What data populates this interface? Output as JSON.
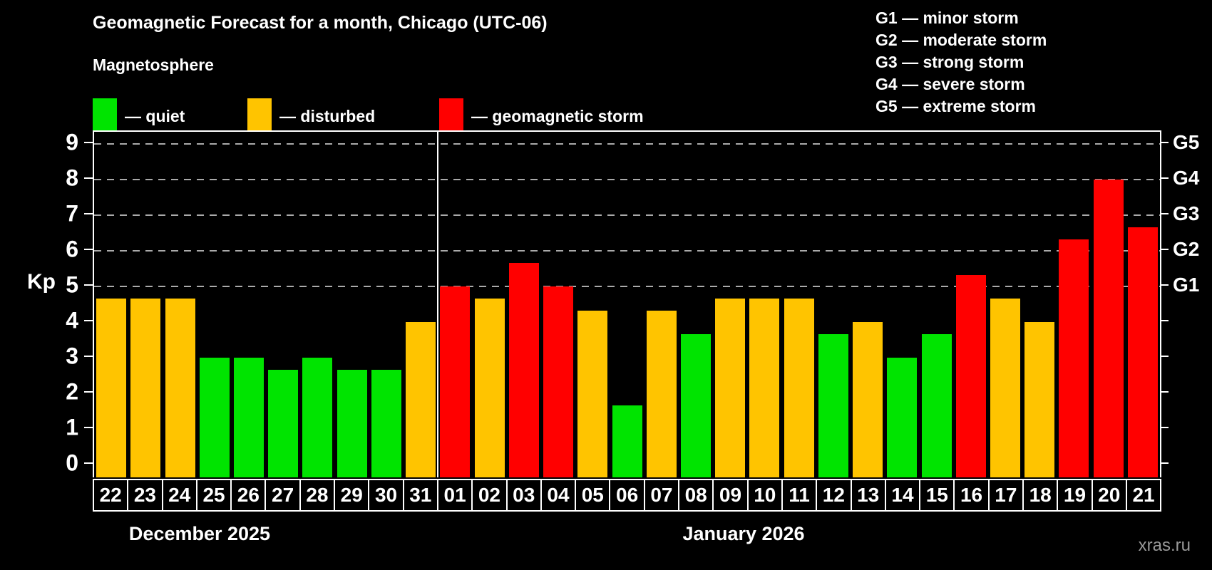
{
  "title": "Geomagnetic Forecast for a month, Chicago (UTC-06)",
  "subtitle": "Magnetosphere",
  "legend": {
    "items": [
      {
        "label": "— quiet",
        "level": "quiet",
        "color": "#00e400"
      },
      {
        "label": "— disturbed",
        "level": "disturbed",
        "color": "#ffc400"
      },
      {
        "label": "— geomagnetic storm",
        "level": "storm",
        "color": "#ff0000"
      }
    ]
  },
  "g_scale_legend": [
    "G1 — minor storm",
    "G2 — moderate storm",
    "G3 — strong storm",
    "G4 — severe storm",
    "G5 — extreme storm"
  ],
  "watermark": "xras.ru",
  "chart_data": {
    "type": "bar",
    "title": "Geomagnetic Forecast for a month, Chicago (UTC-06)",
    "ylabel": "Kp",
    "ylim": [
      0,
      9.34
    ],
    "yticks": [
      0,
      1,
      2,
      3,
      4,
      5,
      6,
      7,
      8,
      9
    ],
    "gridlines_at": [
      5,
      6,
      7,
      8,
      9
    ],
    "grid": "dashed horizontal at storm levels only",
    "legend_position": "top-left",
    "right_axis_labels": [
      {
        "label": "G1",
        "value": 5
      },
      {
        "label": "G2",
        "value": 6
      },
      {
        "label": "G3",
        "value": 7
      },
      {
        "label": "G4",
        "value": 8
      },
      {
        "label": "G5",
        "value": 9
      }
    ],
    "months": [
      {
        "label": "December 2025",
        "days": 10
      },
      {
        "label": "January 2026",
        "days": 21
      }
    ],
    "categories": [
      "22",
      "23",
      "24",
      "25",
      "26",
      "27",
      "28",
      "29",
      "30",
      "31",
      "01",
      "02",
      "03",
      "04",
      "05",
      "06",
      "07",
      "08",
      "09",
      "10",
      "11",
      "12",
      "13",
      "14",
      "15",
      "16",
      "17",
      "18",
      "19",
      "20",
      "21"
    ],
    "values": [
      4.67,
      4.67,
      4.67,
      3,
      3,
      2.67,
      3,
      2.67,
      2.67,
      4,
      5,
      4.67,
      5.67,
      5,
      4.33,
      1.67,
      4.33,
      3.67,
      4.67,
      4.67,
      4.67,
      3.67,
      4,
      3,
      3.67,
      5.33,
      4.67,
      4,
      6.33,
      8,
      6.67
    ],
    "levels": [
      "disturbed",
      "disturbed",
      "disturbed",
      "quiet",
      "quiet",
      "quiet",
      "quiet",
      "quiet",
      "quiet",
      "disturbed",
      "storm",
      "disturbed",
      "storm",
      "storm",
      "disturbed",
      "quiet",
      "disturbed",
      "quiet",
      "disturbed",
      "disturbed",
      "disturbed",
      "quiet",
      "disturbed",
      "quiet",
      "quiet",
      "storm",
      "disturbed",
      "disturbed",
      "storm",
      "storm",
      "storm"
    ],
    "colors": {
      "quiet": "#00e400",
      "disturbed": "#ffc400",
      "storm": "#ff0000"
    },
    "gridline_color": "#aaaaaa",
    "axis_color": "#ffffff",
    "background_color": "#000000"
  }
}
